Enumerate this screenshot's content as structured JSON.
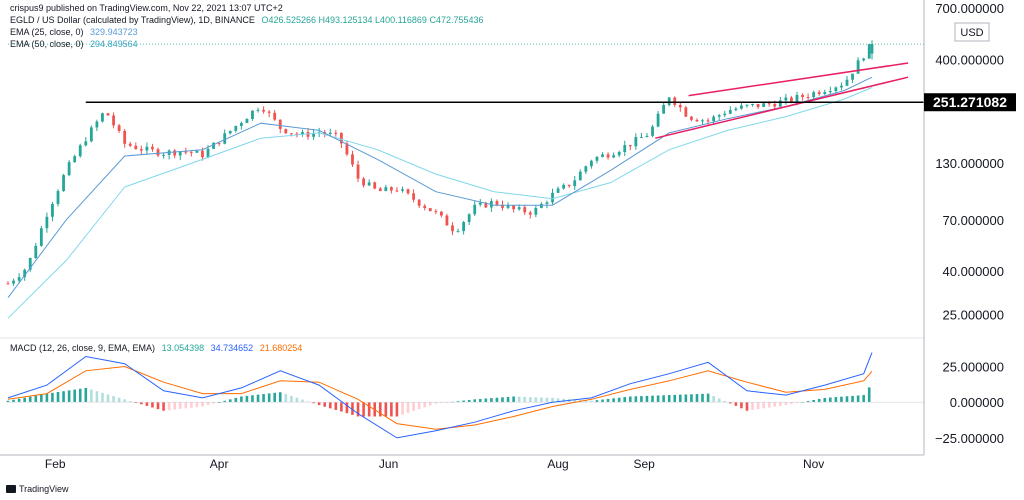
{
  "header": {
    "published": "crispus9 published on TradingView.com, Nov 22, 2021 13:07 UTC+2",
    "symbol": "EGLD / US Dollar (calculated by TradingView), 1D, BINANCE",
    "ohlc": "O426.525266  H493.125134  L400.116869  C472.755436",
    "ema25_label": "EMA (25, close, 0)",
    "ema25_value": "329.943723",
    "ema50_label": "EMA (50, close, 0)",
    "ema50_value": "294.849564",
    "macd_label": "MACD (12, 26, close, 9, EMA, EMA)",
    "macd_values": [
      "13.054398",
      "34.734652",
      "21.680254"
    ],
    "currency": "USD",
    "brand": "TradingView"
  },
  "colors": {
    "up": "#26a69a",
    "down": "#ef5350",
    "ema25": "#5b9bd5",
    "ema50": "#80d8ea",
    "macd_line": "#2962ff",
    "signal_line": "#ff6d00",
    "hist_up": "#26a69a",
    "hist_down": "#ef5350",
    "trendline": "#e91e63",
    "resistance": "#000000"
  },
  "chart_data": [
    {
      "type": "candlestick",
      "title": "EGLD / US Dollar (calculated by TradingView), 1D, BINANCE",
      "y_scale": "log",
      "ylim": [
        20,
        700
      ],
      "y_ticks": [
        700,
        400,
        130,
        70,
        40,
        25
      ],
      "y_tick_labels": [
        "700.000000",
        "400.000000",
        "130.000000",
        "70.000000",
        "40.000000",
        "25.000000"
      ],
      "x_ticks": [
        "Feb",
        "Apr",
        "Jun",
        "Aug",
        "Sep",
        "Nov"
      ],
      "x_tick_dates": [
        "2021-02-01",
        "2021-04-01",
        "2021-06-01",
        "2021-08-01",
        "2021-09-01",
        "2021-11-01"
      ],
      "x_range": [
        "2021-01-15",
        "2021-12-10"
      ],
      "resistance_level": 251.271082,
      "resistance_label": "251.271082",
      "resistance_start": "2021-02-12",
      "series_closes": [
        [
          "2021-01-15",
          35
        ],
        [
          "2021-01-22",
          42
        ],
        [
          "2021-01-29",
          75
        ],
        [
          "2021-02-05",
          120
        ],
        [
          "2021-02-12",
          170
        ],
        [
          "2021-02-19",
          230
        ],
        [
          "2021-02-26",
          160
        ],
        [
          "2021-03-05",
          150
        ],
        [
          "2021-03-12",
          145
        ],
        [
          "2021-03-19",
          148
        ],
        [
          "2021-03-26",
          142
        ],
        [
          "2021-04-02",
          170
        ],
        [
          "2021-04-09",
          205
        ],
        [
          "2021-04-16",
          245
        ],
        [
          "2021-04-23",
          190
        ],
        [
          "2021-04-30",
          175
        ],
        [
          "2021-05-07",
          182
        ],
        [
          "2021-05-14",
          172
        ],
        [
          "2021-05-21",
          110
        ],
        [
          "2021-05-28",
          95
        ],
        [
          "2021-06-04",
          98
        ],
        [
          "2021-06-11",
          86
        ],
        [
          "2021-06-18",
          75
        ],
        [
          "2021-06-25",
          62
        ],
        [
          "2021-07-02",
          80
        ],
        [
          "2021-07-09",
          85
        ],
        [
          "2021-07-16",
          78
        ],
        [
          "2021-07-23",
          76
        ],
        [
          "2021-07-30",
          92
        ],
        [
          "2021-08-06",
          105
        ],
        [
          "2021-08-13",
          135
        ],
        [
          "2021-08-20",
          145
        ],
        [
          "2021-08-27",
          160
        ],
        [
          "2021-09-03",
          180
        ],
        [
          "2021-09-10",
          270
        ],
        [
          "2021-09-17",
          215
        ],
        [
          "2021-09-24",
          205
        ],
        [
          "2021-10-01",
          230
        ],
        [
          "2021-10-08",
          240
        ],
        [
          "2021-10-15",
          245
        ],
        [
          "2021-10-22",
          255
        ],
        [
          "2021-10-29",
          270
        ],
        [
          "2021-11-05",
          290
        ],
        [
          "2021-11-12",
          310
        ],
        [
          "2021-11-19",
          420
        ],
        [
          "2021-11-22",
          472.755436
        ]
      ],
      "ema25": [
        [
          "2021-01-15",
          30
        ],
        [
          "2021-02-05",
          70
        ],
        [
          "2021-02-26",
          140
        ],
        [
          "2021-03-26",
          150
        ],
        [
          "2021-04-16",
          200
        ],
        [
          "2021-05-07",
          185
        ],
        [
          "2021-05-28",
          135
        ],
        [
          "2021-06-18",
          95
        ],
        [
          "2021-07-09",
          82
        ],
        [
          "2021-07-30",
          82
        ],
        [
          "2021-08-20",
          120
        ],
        [
          "2021-09-10",
          180
        ],
        [
          "2021-10-01",
          210
        ],
        [
          "2021-10-22",
          240
        ],
        [
          "2021-11-12",
          285
        ],
        [
          "2021-11-22",
          329.943723
        ]
      ],
      "ema50": [
        [
          "2021-01-15",
          24
        ],
        [
          "2021-02-05",
          45
        ],
        [
          "2021-02-26",
          100
        ],
        [
          "2021-03-26",
          135
        ],
        [
          "2021-04-16",
          170
        ],
        [
          "2021-05-07",
          180
        ],
        [
          "2021-05-28",
          150
        ],
        [
          "2021-06-18",
          115
        ],
        [
          "2021-07-09",
          95
        ],
        [
          "2021-07-30",
          88
        ],
        [
          "2021-08-20",
          105
        ],
        [
          "2021-09-10",
          150
        ],
        [
          "2021-10-01",
          185
        ],
        [
          "2021-10-22",
          215
        ],
        [
          "2021-11-12",
          260
        ],
        [
          "2021-11-22",
          294.849564
        ]
      ],
      "channel_upper": [
        [
          "2021-09-17",
          270
        ],
        [
          "2021-12-05",
          385
        ]
      ],
      "channel_lower": [
        [
          "2021-09-05",
          170
        ],
        [
          "2021-12-05",
          330
        ]
      ]
    },
    {
      "type": "line",
      "title": "MACD (12, 26, close, 9, EMA, EMA)",
      "ylim": [
        -30,
        45
      ],
      "y_ticks": [
        25,
        0,
        -25
      ],
      "y_tick_labels": [
        "25.000000",
        "0.000000",
        "−25.000000"
      ],
      "series": [
        {
          "name": "MACD",
          "values": [
            [
              "2021-01-15",
              3
            ],
            [
              "2021-01-29",
              12
            ],
            [
              "2021-02-12",
              32
            ],
            [
              "2021-02-26",
              27
            ],
            [
              "2021-03-12",
              8
            ],
            [
              "2021-03-26",
              3
            ],
            [
              "2021-04-09",
              10
            ],
            [
              "2021-04-23",
              22
            ],
            [
              "2021-05-07",
              12
            ],
            [
              "2021-05-21",
              -8
            ],
            [
              "2021-06-04",
              -25
            ],
            [
              "2021-06-18",
              -20
            ],
            [
              "2021-07-02",
              -14
            ],
            [
              "2021-07-16",
              -6
            ],
            [
              "2021-07-30",
              0
            ],
            [
              "2021-08-13",
              3
            ],
            [
              "2021-08-27",
              13
            ],
            [
              "2021-09-10",
              20
            ],
            [
              "2021-09-24",
              28
            ],
            [
              "2021-10-08",
              8
            ],
            [
              "2021-10-22",
              5
            ],
            [
              "2021-11-05",
              12
            ],
            [
              "2021-11-19",
              20
            ],
            [
              "2021-11-22",
              34.734652
            ]
          ]
        },
        {
          "name": "Signal",
          "values": [
            [
              "2021-01-15",
              2
            ],
            [
              "2021-01-29",
              6
            ],
            [
              "2021-02-12",
              22
            ],
            [
              "2021-02-26",
              25
            ],
            [
              "2021-03-12",
              14
            ],
            [
              "2021-03-26",
              6
            ],
            [
              "2021-04-09",
              6
            ],
            [
              "2021-04-23",
              15
            ],
            [
              "2021-05-07",
              14
            ],
            [
              "2021-05-21",
              2
            ],
            [
              "2021-06-04",
              -15
            ],
            [
              "2021-06-18",
              -19
            ],
            [
              "2021-07-02",
              -16
            ],
            [
              "2021-07-16",
              -10
            ],
            [
              "2021-07-30",
              -3
            ],
            [
              "2021-08-13",
              2
            ],
            [
              "2021-08-27",
              9
            ],
            [
              "2021-09-10",
              15
            ],
            [
              "2021-09-24",
              22
            ],
            [
              "2021-10-08",
              14
            ],
            [
              "2021-10-22",
              7
            ],
            [
              "2021-11-05",
              9
            ],
            [
              "2021-11-19",
              15
            ],
            [
              "2021-11-22",
              21.680254
            ]
          ]
        },
        {
          "name": "Histogram",
          "values": [
            [
              "2021-01-15",
              1
            ],
            [
              "2021-01-29",
              6
            ],
            [
              "2021-02-12",
              10
            ],
            [
              "2021-02-26",
              2
            ],
            [
              "2021-03-12",
              -6
            ],
            [
              "2021-03-26",
              -3
            ],
            [
              "2021-04-09",
              4
            ],
            [
              "2021-04-23",
              7
            ],
            [
              "2021-05-07",
              -2
            ],
            [
              "2021-05-21",
              -10
            ],
            [
              "2021-06-04",
              -10
            ],
            [
              "2021-06-18",
              -1
            ],
            [
              "2021-07-02",
              2
            ],
            [
              "2021-07-16",
              4
            ],
            [
              "2021-07-30",
              3
            ],
            [
              "2021-08-13",
              1
            ],
            [
              "2021-08-27",
              4
            ],
            [
              "2021-09-10",
              5
            ],
            [
              "2021-09-24",
              6
            ],
            [
              "2021-10-08",
              -6
            ],
            [
              "2021-10-22",
              -2
            ],
            [
              "2021-11-05",
              3
            ],
            [
              "2021-11-19",
              5
            ],
            [
              "2021-11-22",
              13.054398
            ]
          ]
        }
      ]
    }
  ]
}
